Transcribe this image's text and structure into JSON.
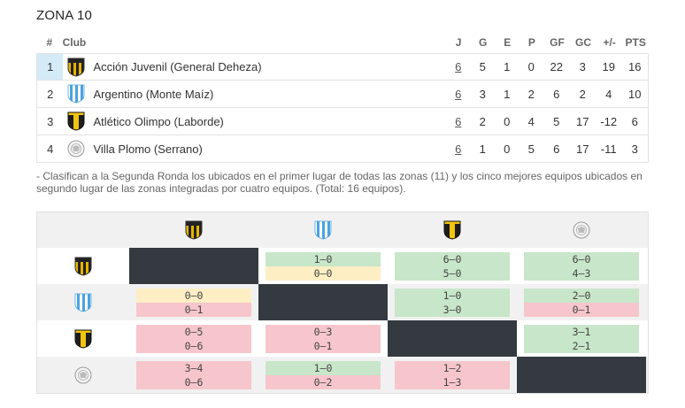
{
  "zone_title": "ZONA 10",
  "headers": {
    "pos": "#",
    "club": "Club",
    "j": "J",
    "g": "G",
    "e": "E",
    "p": "P",
    "gf": "GF",
    "gc": "GC",
    "diff": "+/-",
    "pts": "PTS"
  },
  "teams": [
    {
      "pos": "1",
      "name": "Acción Juvenil (General Deheza)",
      "j": "6",
      "g": "5",
      "e": "1",
      "p": "0",
      "gf": "22",
      "gc": "3",
      "diff": "19",
      "pts": "16",
      "shield": "yellow-black-striped-shield-icon"
    },
    {
      "pos": "2",
      "name": "Argentino (Monte Maíz)",
      "j": "6",
      "g": "3",
      "e": "1",
      "p": "2",
      "gf": "6",
      "gc": "2",
      "diff": "4",
      "pts": "10",
      "shield": "blue-white-striped-shield-icon"
    },
    {
      "pos": "3",
      "name": "Atlético Olimpo (Laborde)",
      "j": "6",
      "g": "2",
      "e": "0",
      "p": "4",
      "gf": "5",
      "gc": "17",
      "diff": "-12",
      "pts": "6",
      "shield": "yellow-black-shield-icon"
    },
    {
      "pos": "4",
      "name": "Villa Plomo (Serrano)",
      "j": "6",
      "g": "1",
      "e": "0",
      "p": "5",
      "gf": "6",
      "gc": "17",
      "diff": "-11",
      "pts": "3",
      "shield": "round-gray-crest-icon"
    }
  ],
  "note": "- Clasifican a la Segunda Ronda los ubicados en el primer lugar de todas las zonas (11) y los cinco mejores equipos ubicados en segundo lugar de las zonas integradas por cuatro equipos. (Total: 16 equipos).",
  "colors": {
    "win": "#c8e6c9",
    "draw": "#fdeec4",
    "loss": "#f6c6cc",
    "self": "#343a40",
    "highlight": "#d4ebf7"
  },
  "matrix": [
    [
      null,
      [
        {
          "s": "1-0",
          "r": "win"
        },
        {
          "s": "0-0",
          "r": "draw"
        }
      ],
      [
        {
          "s": "6-0",
          "r": "win"
        },
        {
          "s": "5-0",
          "r": "win"
        }
      ],
      [
        {
          "s": "6-0",
          "r": "win"
        },
        {
          "s": "4-3",
          "r": "win"
        }
      ]
    ],
    [
      [
        {
          "s": "0-0",
          "r": "draw"
        },
        {
          "s": "0-1",
          "r": "loss"
        }
      ],
      null,
      [
        {
          "s": "1-0",
          "r": "win"
        },
        {
          "s": "3-0",
          "r": "win"
        }
      ],
      [
        {
          "s": "2-0",
          "r": "win"
        },
        {
          "s": "0-1",
          "r": "loss"
        }
      ]
    ],
    [
      [
        {
          "s": "0-5",
          "r": "loss"
        },
        {
          "s": "0-6",
          "r": "loss"
        }
      ],
      [
        {
          "s": "0-3",
          "r": "loss"
        },
        {
          "s": "0-1",
          "r": "loss"
        }
      ],
      null,
      [
        {
          "s": "3-1",
          "r": "win"
        },
        {
          "s": "2-1",
          "r": "win"
        }
      ]
    ],
    [
      [
        {
          "s": "3-4",
          "r": "loss"
        },
        {
          "s": "0-6",
          "r": "loss"
        }
      ],
      [
        {
          "s": "1-0",
          "r": "win"
        },
        {
          "s": "0-2",
          "r": "loss"
        }
      ],
      [
        {
          "s": "1-2",
          "r": "loss"
        },
        {
          "s": "1-3",
          "r": "loss"
        }
      ],
      null
    ]
  ]
}
